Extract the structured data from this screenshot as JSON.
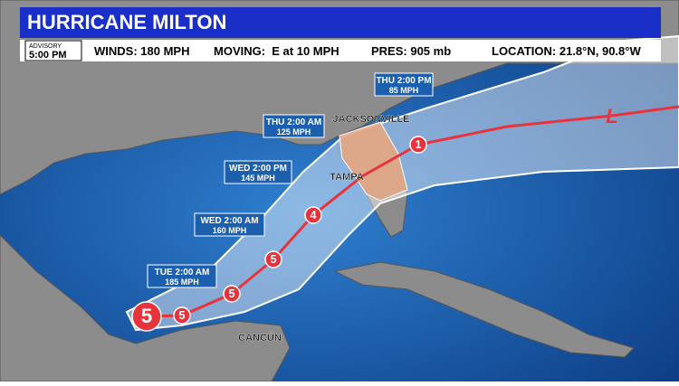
{
  "header": {
    "title": "HURRICANE MILTON"
  },
  "advisory": {
    "label": "ADVISORY",
    "time": "5:00 PM",
    "winds": "WINDS: 180 MPH",
    "moving": "MOVING:  E at 10 MPH",
    "pressure": "PRES: 905 mb",
    "location": "LOCATION: 21.8°N, 90.8°W"
  },
  "forecast_points": [
    {
      "time": "TUE 2:00 AM",
      "winds": "185 MPH"
    },
    {
      "time": "WED 2:00 AM",
      "winds": "160 MPH"
    },
    {
      "time": "WED 2:00 PM",
      "winds": "145 MPH"
    },
    {
      "time": "THU 2:00 AM",
      "winds": "125 MPH"
    },
    {
      "time": "THU 2:00 PM",
      "winds": "85 MPH"
    }
  ],
  "markers": [
    "5",
    "5",
    "5",
    "5",
    "4",
    "1",
    "L"
  ],
  "cities": [
    "JACKSONVILLE",
    "TAMPA",
    "CANCÚN"
  ]
}
